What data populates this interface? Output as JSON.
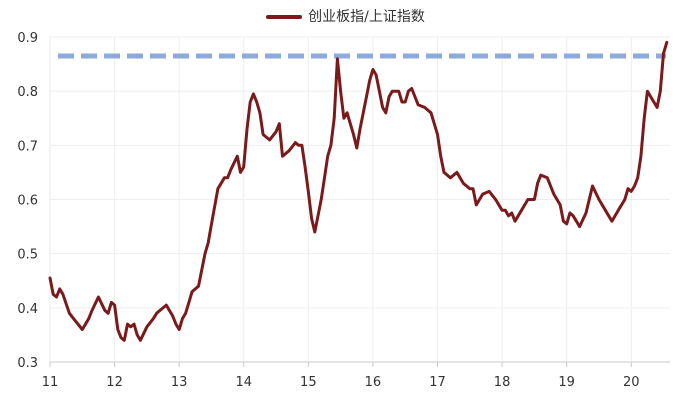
{
  "legend": {
    "label": "创业板指/上证指数"
  },
  "colors": {
    "series": "#7b1a1a",
    "reference": "#8ea9db",
    "grid": "#eeeeee",
    "axis": "#c8c8c8"
  },
  "chart_data": {
    "type": "line",
    "title": "",
    "xlabel": "",
    "ylabel": "",
    "legend_position": "top-center",
    "grid": true,
    "xlim": [
      11,
      20.6
    ],
    "ylim": [
      0.3,
      0.9
    ],
    "x_ticks": [
      11,
      12,
      13,
      14,
      15,
      16,
      17,
      18,
      19,
      20
    ],
    "x_tick_labels": [
      "11",
      "12",
      "13",
      "14",
      "15",
      "16",
      "17",
      "18",
      "19",
      "20"
    ],
    "y_ticks": [
      0.3,
      0.4,
      0.5,
      0.6,
      0.7,
      0.8,
      0.9
    ],
    "y_tick_labels": [
      "0.3",
      "0.4",
      "0.5",
      "0.6",
      "0.7",
      "0.8",
      "0.9"
    ],
    "reference_line": {
      "y": 0.865,
      "style": "dashed"
    },
    "series": [
      {
        "name": "创业板指/上证指数",
        "x": [
          11.0,
          11.05,
          11.1,
          11.15,
          11.2,
          11.3,
          11.4,
          11.5,
          11.6,
          11.65,
          11.75,
          11.85,
          11.9,
          11.95,
          12.0,
          12.05,
          12.1,
          12.15,
          12.2,
          12.25,
          12.3,
          12.35,
          12.4,
          12.5,
          12.6,
          12.65,
          12.7,
          12.8,
          12.9,
          12.95,
          13.0,
          13.05,
          13.1,
          13.15,
          13.2,
          13.3,
          13.4,
          13.45,
          13.5,
          13.6,
          13.7,
          13.75,
          13.8,
          13.9,
          13.95,
          14.0,
          14.05,
          14.1,
          14.15,
          14.2,
          14.25,
          14.3,
          14.4,
          14.5,
          14.55,
          14.6,
          14.7,
          14.8,
          14.85,
          14.9,
          14.95,
          15.0,
          15.05,
          15.1,
          15.2,
          15.25,
          15.3,
          15.35,
          15.4,
          15.45,
          15.5,
          15.55,
          15.6,
          15.7,
          15.75,
          15.8,
          15.9,
          15.95,
          16.0,
          16.05,
          16.1,
          16.15,
          16.2,
          16.25,
          16.3,
          16.4,
          16.45,
          16.5,
          16.55,
          16.6,
          16.7,
          16.8,
          16.9,
          17.0,
          17.05,
          17.1,
          17.2,
          17.3,
          17.4,
          17.5,
          17.55,
          17.6,
          17.7,
          17.8,
          17.9,
          18.0,
          18.05,
          18.1,
          18.15,
          18.2,
          18.3,
          18.4,
          18.5,
          18.55,
          18.6,
          18.7,
          18.8,
          18.9,
          18.95,
          19.0,
          19.05,
          19.1,
          19.15,
          19.2,
          19.3,
          19.4,
          19.5,
          19.6,
          19.7,
          19.8,
          19.9,
          19.95,
          20.0,
          20.05,
          20.1,
          20.15,
          20.2,
          20.25,
          20.3,
          20.4,
          20.45,
          20.5,
          20.55
        ],
        "y": [
          0.455,
          0.425,
          0.42,
          0.435,
          0.425,
          0.39,
          0.375,
          0.36,
          0.38,
          0.395,
          0.42,
          0.395,
          0.39,
          0.41,
          0.405,
          0.36,
          0.345,
          0.34,
          0.37,
          0.365,
          0.37,
          0.35,
          0.34,
          0.365,
          0.38,
          0.39,
          0.395,
          0.405,
          0.385,
          0.37,
          0.36,
          0.38,
          0.39,
          0.41,
          0.43,
          0.44,
          0.5,
          0.52,
          0.555,
          0.62,
          0.64,
          0.64,
          0.655,
          0.68,
          0.65,
          0.66,
          0.73,
          0.78,
          0.795,
          0.78,
          0.76,
          0.72,
          0.71,
          0.725,
          0.74,
          0.68,
          0.69,
          0.705,
          0.7,
          0.7,
          0.66,
          0.615,
          0.565,
          0.54,
          0.6,
          0.64,
          0.68,
          0.7,
          0.75,
          0.86,
          0.8,
          0.75,
          0.76,
          0.72,
          0.695,
          0.73,
          0.79,
          0.82,
          0.84,
          0.83,
          0.8,
          0.77,
          0.76,
          0.79,
          0.8,
          0.8,
          0.78,
          0.78,
          0.8,
          0.805,
          0.775,
          0.77,
          0.76,
          0.72,
          0.68,
          0.65,
          0.64,
          0.65,
          0.63,
          0.62,
          0.62,
          0.59,
          0.61,
          0.615,
          0.6,
          0.58,
          0.58,
          0.57,
          0.575,
          0.56,
          0.58,
          0.6,
          0.6,
          0.63,
          0.645,
          0.64,
          0.61,
          0.59,
          0.56,
          0.555,
          0.575,
          0.57,
          0.56,
          0.55,
          0.575,
          0.625,
          0.6,
          0.58,
          0.56,
          0.58,
          0.6,
          0.62,
          0.615,
          0.625,
          0.64,
          0.68,
          0.75,
          0.8,
          0.79,
          0.77,
          0.8,
          0.87,
          0.89
        ]
      }
    ]
  }
}
